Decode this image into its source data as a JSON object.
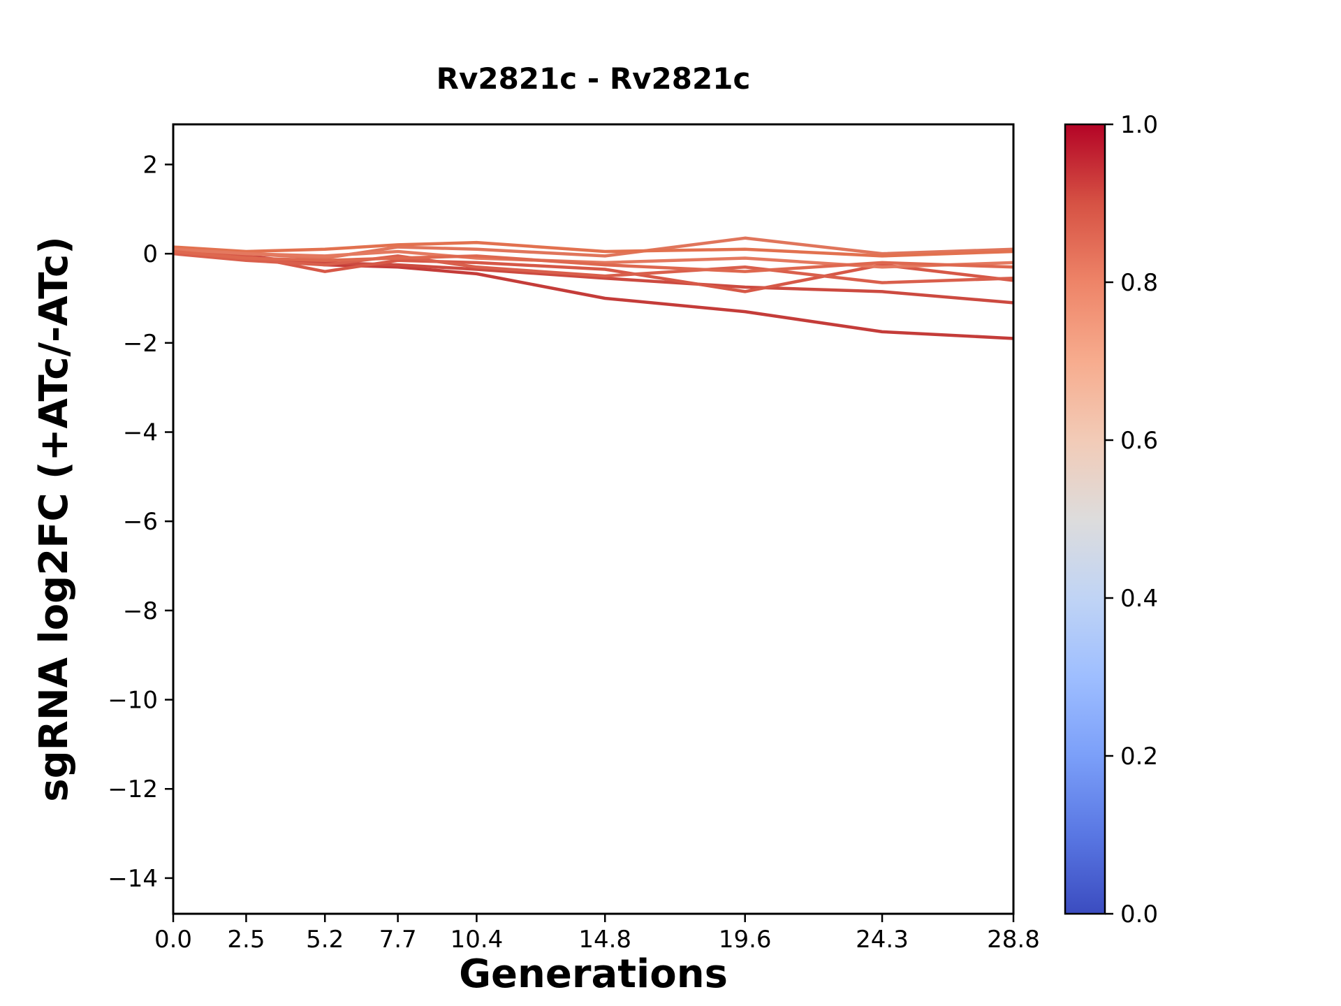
{
  "chart_data": {
    "type": "line",
    "title": "Rv2821c - Rv2821c",
    "xlabel": "Generations",
    "ylabel": "sgRNA log2FC (+ATc/-ATc)",
    "xlim": [
      0,
      28.8
    ],
    "ylim": [
      -14.8,
      2.9
    ],
    "grid": false,
    "xticks": [
      0.0,
      2.5,
      5.2,
      7.7,
      10.4,
      14.8,
      19.6,
      24.3,
      28.8
    ],
    "xtick_labels": [
      "0.0",
      "2.5",
      "5.2",
      "7.7",
      "10.4",
      "14.8",
      "19.6",
      "24.3",
      "28.8"
    ],
    "yticks": [
      2,
      0,
      -2,
      -4,
      -6,
      -8,
      -10,
      -12,
      -14
    ],
    "ytick_labels": [
      "2",
      "0",
      "−2",
      "−4",
      "−6",
      "−8",
      "−10",
      "−12",
      "−14"
    ],
    "x": [
      0.0,
      2.5,
      5.2,
      7.7,
      10.4,
      14.8,
      19.6,
      24.3,
      28.8
    ],
    "series": [
      {
        "name": "1",
        "color": "#c43c39",
        "values": [
          0.1,
          -0.05,
          -0.25,
          -0.3,
          -0.45,
          -1.0,
          -1.3,
          -1.75,
          -1.9
        ]
      },
      {
        "name": "2",
        "color": "#cc4a40",
        "values": [
          0.05,
          -0.1,
          -0.2,
          -0.25,
          -0.35,
          -0.55,
          -0.75,
          -0.85,
          -1.1
        ]
      },
      {
        "name": "3",
        "color": "#e0755b",
        "values": [
          0.1,
          0.0,
          -0.1,
          0.15,
          0.1,
          -0.05,
          0.35,
          0.0,
          0.1
        ]
      },
      {
        "name": "4",
        "color": "#e2714f",
        "values": [
          0.15,
          0.05,
          0.1,
          0.2,
          0.25,
          0.05,
          0.1,
          -0.05,
          0.05
        ]
      },
      {
        "name": "5",
        "color": "#d65847",
        "values": [
          0.05,
          -0.05,
          -0.4,
          -0.15,
          -0.2,
          -0.35,
          -0.85,
          -0.25,
          -0.6
        ]
      },
      {
        "name": "6",
        "color": "#d95f4c",
        "values": [
          0.0,
          -0.15,
          -0.25,
          -0.05,
          -0.3,
          -0.5,
          -0.3,
          -0.65,
          -0.55
        ]
      },
      {
        "name": "7",
        "color": "#e4795f",
        "values": [
          0.1,
          0.0,
          -0.05,
          0.05,
          -0.1,
          -0.2,
          -0.1,
          -0.3,
          -0.2
        ]
      },
      {
        "name": "8",
        "color": "#de684f",
        "values": [
          0.05,
          -0.1,
          -0.15,
          -0.1,
          -0.05,
          -0.25,
          -0.4,
          -0.2,
          -0.3
        ]
      }
    ],
    "colorbar": {
      "cmap": "coolwarm",
      "ticks": [
        0.0,
        0.2,
        0.4,
        0.6,
        0.8,
        1.0
      ],
      "tick_labels": [
        "0.0",
        "0.2",
        "0.4",
        "0.6",
        "0.8",
        "1.0"
      ],
      "gradient_stops": [
        {
          "pos": 0.0,
          "color": "#3b4cc0"
        },
        {
          "pos": 0.1,
          "color": "#5977e3"
        },
        {
          "pos": 0.2,
          "color": "#7b9ff9"
        },
        {
          "pos": 0.3,
          "color": "#9ebeff"
        },
        {
          "pos": 0.4,
          "color": "#c0d4f5"
        },
        {
          "pos": 0.5,
          "color": "#dddcdc"
        },
        {
          "pos": 0.6,
          "color": "#f2cbb7"
        },
        {
          "pos": 0.7,
          "color": "#f7ac8e"
        },
        {
          "pos": 0.8,
          "color": "#ee8468"
        },
        {
          "pos": 0.9,
          "color": "#d65244"
        },
        {
          "pos": 1.0,
          "color": "#b40426"
        }
      ]
    },
    "axis_color": "#000000",
    "background_color": "#ffffff"
  }
}
